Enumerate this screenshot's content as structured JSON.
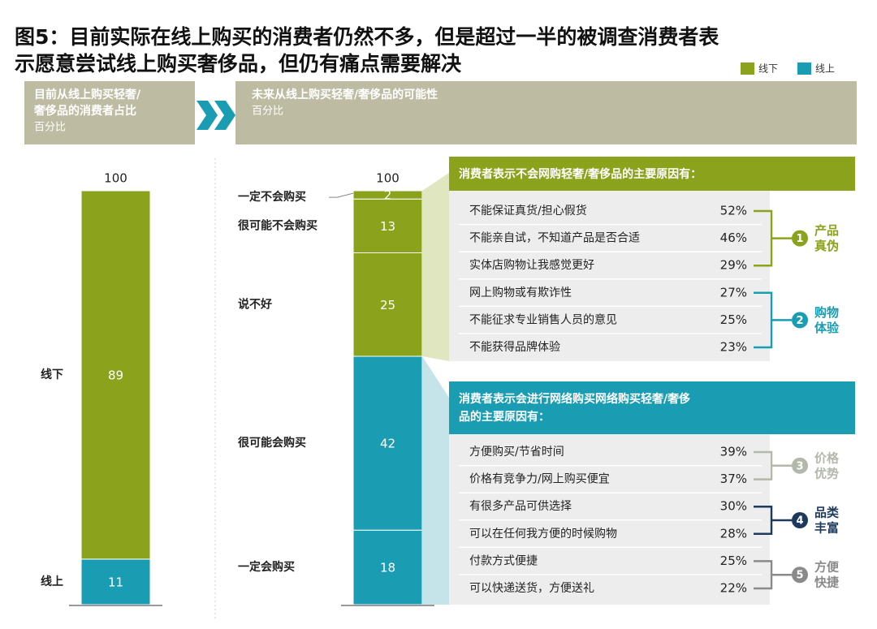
{
  "title_lines": [
    "图5：目前实际在线上购买的消费者仍然不多，但是超过一半的被调查消费者表",
    "示愿意尝试线上购买奢侈品，但仍有痛点需要解决"
  ],
  "legend": [
    {
      "name": "线下",
      "color": "#8ba31c"
    },
    {
      "name": "线上",
      "color": "#1a9db3"
    }
  ],
  "headers": [
    {
      "title_lines": [
        "目前从线上购买轻奢/",
        "奢侈品的消费者占比"
      ],
      "subtitle": "百分比"
    },
    {
      "title_lines": [
        "未来从线上购买轻奢/奢侈品的可能性"
      ],
      "subtitle": "百分比"
    }
  ],
  "chart_data": [
    {
      "type": "stacked_bar",
      "total": 100,
      "ylim": [
        0,
        100
      ],
      "series": [
        {
          "name": "线上",
          "color": "#1a9db3",
          "values": [
            11
          ]
        },
        {
          "name": "线下",
          "color": "#8ba31c",
          "values": [
            89
          ]
        }
      ]
    },
    {
      "type": "stacked_bar",
      "total": 100,
      "ylim": [
        0,
        100
      ],
      "series": [
        {
          "name": "一定会购买",
          "color": "#1a9db3",
          "values": [
            18
          ]
        },
        {
          "name": "很可能会购买",
          "color": "#1a9db3",
          "values": [
            42
          ]
        },
        {
          "name": "说不好",
          "color": "#8ba31c",
          "values": [
            25
          ]
        },
        {
          "name": "很可能不会购买",
          "color": "#8ba31c",
          "values": [
            13
          ]
        },
        {
          "name": "一定不会购买",
          "color": "#8ba31c",
          "values": [
            2
          ]
        }
      ]
    }
  ],
  "panels": [
    {
      "title_lines": [
        "消费者表示不会网购轻奢/奢侈品的主要原因有："
      ],
      "color": "#8ba31c",
      "tint": "#dfe6c0",
      "items": [
        {
          "text": "不能保证真货/担心假货",
          "percent": "52%"
        },
        {
          "text": "不能亲自试，不知道产品是否合适",
          "percent": "46%"
        },
        {
          "text": "实体店购物让我感觉更好",
          "percent": "29%"
        },
        {
          "text": "网上购物或有欺诈性",
          "percent": "27%"
        },
        {
          "text": "不能征求专业销售人员的意见",
          "percent": "25%"
        },
        {
          "text": "不能获得品牌体验",
          "percent": "23%"
        }
      ],
      "groups": [
        {
          "number": "1",
          "label_lines": [
            "产品",
            "真伪"
          ],
          "color": "#8ba31c"
        },
        {
          "number": "2",
          "label_lines": [
            "购物",
            "体验"
          ],
          "color": "#1a9db3"
        }
      ]
    },
    {
      "title_lines": [
        "消费者表示会进行网络购买网络购买轻奢/奢侈",
        "品的主要原因有："
      ],
      "color": "#1a9db3",
      "tint": "#c4e4ea",
      "items": [
        {
          "text": "方便购买/节省时间",
          "percent": "39%"
        },
        {
          "text": "价格有竞争力/网上购买便宜",
          "percent": "37%"
        },
        {
          "text": "有很多产品可供选择",
          "percent": "30%"
        },
        {
          "text": "可以在任何我方便的时候购物",
          "percent": "28%"
        },
        {
          "text": "付款方式便捷",
          "percent": "25%"
        },
        {
          "text": "可以快递送货，方便送礼",
          "percent": "22%"
        }
      ],
      "groups": [
        {
          "number": "3",
          "label_lines": [
            "价格",
            "优势"
          ],
          "color": "#b3b8aa"
        },
        {
          "number": "4",
          "label_lines": [
            "品类",
            "丰富"
          ],
          "color": "#1d3a5c"
        },
        {
          "number": "5",
          "label_lines": [
            "方便",
            "快捷"
          ],
          "color": "#8a8a8a"
        }
      ]
    }
  ]
}
